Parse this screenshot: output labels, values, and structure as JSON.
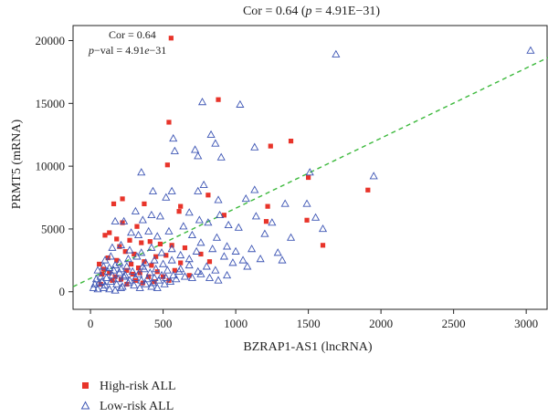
{
  "chart_data": {
    "type": "scatter",
    "title_parts": {
      "prefix": "Cor = 0.64 (",
      "p_symbol": "p",
      "suffix": " = 4.91E−31)"
    },
    "xlabel": "BZRAP1-AS1 (lncRNA)",
    "ylabel": "PRMT5 (mRNA)",
    "xlim": [
      -120,
      3150
    ],
    "ylim": [
      -1400,
      21200
    ],
    "x_ticks": [
      0,
      500,
      1000,
      1500,
      2000,
      2500,
      3000
    ],
    "y_ticks": [
      0,
      5000,
      10000,
      15000,
      20000
    ],
    "grid": false,
    "legend_position": "bottom-left",
    "annotations": {
      "cor": "Cor = 0.64",
      "pval_symbol": "p",
      "pval_mid": "−val = 4.91",
      "pval_e": "e",
      "pval_exp": "−31"
    },
    "regression": {
      "style": "dashed",
      "color": "#3cb93c",
      "x0": -120,
      "y0": 400,
      "x1": 3150,
      "y1": 18650
    },
    "series": [
      {
        "name": "High-risk ALL",
        "marker": "square",
        "color": "#e8342a",
        "points": [
          [
            555,
            20200
          ],
          [
            880,
            15300
          ],
          [
            540,
            13500
          ],
          [
            1240,
            11600
          ],
          [
            1380,
            12000
          ],
          [
            530,
            10100
          ],
          [
            1500,
            9100
          ],
          [
            1910,
            8100
          ],
          [
            220,
            7400
          ],
          [
            160,
            7000
          ],
          [
            370,
            7000
          ],
          [
            620,
            6800
          ],
          [
            610,
            6400
          ],
          [
            810,
            7700
          ],
          [
            1220,
            6800
          ],
          [
            920,
            6100
          ],
          [
            1210,
            5600
          ],
          [
            1490,
            5700
          ],
          [
            1600,
            3700
          ],
          [
            220,
            5500
          ],
          [
            320,
            5200
          ],
          [
            130,
            4700
          ],
          [
            100,
            4500
          ],
          [
            180,
            4200
          ],
          [
            270,
            4100
          ],
          [
            350,
            3900
          ],
          [
            410,
            4000
          ],
          [
            480,
            3800
          ],
          [
            560,
            3700
          ],
          [
            650,
            3500
          ],
          [
            760,
            3000
          ],
          [
            820,
            2400
          ],
          [
            200,
            3600
          ],
          [
            240,
            3200
          ],
          [
            300,
            3000
          ],
          [
            120,
            2700
          ],
          [
            180,
            2500
          ],
          [
            60,
            2200
          ],
          [
            90,
            1800
          ],
          [
            130,
            1500
          ],
          [
            170,
            1200
          ],
          [
            210,
            1000
          ],
          [
            250,
            1700
          ],
          [
            290,
            1400
          ],
          [
            330,
            1900
          ],
          [
            370,
            2400
          ],
          [
            420,
            2100
          ],
          [
            460,
            1600
          ],
          [
            500,
            1200
          ],
          [
            540,
            900
          ],
          [
            580,
            1700
          ],
          [
            620,
            2300
          ],
          [
            680,
            1300
          ],
          [
            250,
            600
          ],
          [
            310,
            900
          ],
          [
            360,
            700
          ],
          [
            450,
            2800
          ],
          [
            520,
            2900
          ],
          [
            400,
            1200
          ],
          [
            150,
            900
          ],
          [
            80,
            1400
          ],
          [
            280,
            2200
          ],
          [
            340,
            1500
          ],
          [
            440,
            800
          ],
          [
            70,
            600
          ]
        ]
      },
      {
        "name": "Low-risk ALL",
        "marker": "triangle",
        "color": "#3d55b4",
        "points": [
          [
            3030,
            19200
          ],
          [
            1690,
            18900
          ],
          [
            770,
            15100
          ],
          [
            1030,
            14900
          ],
          [
            830,
            12500
          ],
          [
            570,
            12200
          ],
          [
            860,
            11800
          ],
          [
            720,
            11300
          ],
          [
            1130,
            11500
          ],
          [
            580,
            11200
          ],
          [
            740,
            10800
          ],
          [
            900,
            10700
          ],
          [
            1510,
            9500
          ],
          [
            1950,
            9200
          ],
          [
            350,
            9500
          ],
          [
            780,
            8500
          ],
          [
            1130,
            8100
          ],
          [
            1070,
            7400
          ],
          [
            560,
            8000
          ],
          [
            740,
            8000
          ],
          [
            430,
            8000
          ],
          [
            1340,
            7000
          ],
          [
            520,
            7500
          ],
          [
            880,
            7300
          ],
          [
            1490,
            7000
          ],
          [
            1140,
            6000
          ],
          [
            1250,
            5500
          ],
          [
            1550,
            5900
          ],
          [
            170,
            5600
          ],
          [
            230,
            5600
          ],
          [
            310,
            6400
          ],
          [
            360,
            5700
          ],
          [
            420,
            6100
          ],
          [
            480,
            6000
          ],
          [
            680,
            6300
          ],
          [
            750,
            5700
          ],
          [
            810,
            5500
          ],
          [
            890,
            6100
          ],
          [
            950,
            5300
          ],
          [
            1020,
            5100
          ],
          [
            1200,
            4600
          ],
          [
            1380,
            4300
          ],
          [
            280,
            4700
          ],
          [
            330,
            4500
          ],
          [
            400,
            4800
          ],
          [
            460,
            4400
          ],
          [
            540,
            4800
          ],
          [
            640,
            5200
          ],
          [
            700,
            4500
          ],
          [
            760,
            3900
          ],
          [
            870,
            4300
          ],
          [
            940,
            3600
          ],
          [
            1000,
            3200
          ],
          [
            1110,
            3400
          ],
          [
            1170,
            2600
          ],
          [
            1290,
            3100
          ],
          [
            1320,
            2500
          ],
          [
            1050,
            2500
          ],
          [
            980,
            2300
          ],
          [
            920,
            2800
          ],
          [
            840,
            3400
          ],
          [
            150,
            3500
          ],
          [
            210,
            3700
          ],
          [
            270,
            3300
          ],
          [
            350,
            3100
          ],
          [
            420,
            3500
          ],
          [
            490,
            3100
          ],
          [
            560,
            3400
          ],
          [
            620,
            2900
          ],
          [
            680,
            2600
          ],
          [
            730,
            3200
          ],
          [
            800,
            2000
          ],
          [
            860,
            1700
          ],
          [
            100,
            2500
          ],
          [
            140,
            2800
          ],
          [
            200,
            2300
          ],
          [
            260,
            2600
          ],
          [
            320,
            2800
          ],
          [
            380,
            2300
          ],
          [
            440,
            2500
          ],
          [
            500,
            2200
          ],
          [
            560,
            2500
          ],
          [
            620,
            1800
          ],
          [
            680,
            2100
          ],
          [
            740,
            1600
          ],
          [
            50,
            1700
          ],
          [
            90,
            2000
          ],
          [
            130,
            1900
          ],
          [
            170,
            2100
          ],
          [
            210,
            1800
          ],
          [
            250,
            2000
          ],
          [
            290,
            1600
          ],
          [
            330,
            1400
          ],
          [
            370,
            1800
          ],
          [
            410,
            1500
          ],
          [
            450,
            1800
          ],
          [
            490,
            1300
          ],
          [
            530,
            1700
          ],
          [
            570,
            1300
          ],
          [
            610,
            1600
          ],
          [
            650,
            1200
          ],
          [
            700,
            1100
          ],
          [
            760,
            1400
          ],
          [
            820,
            1100
          ],
          [
            880,
            900
          ],
          [
            940,
            1300
          ],
          [
            40,
            1000
          ],
          [
            70,
            1200
          ],
          [
            110,
            1100
          ],
          [
            150,
            1300
          ],
          [
            190,
            1000
          ],
          [
            230,
            1200
          ],
          [
            270,
            900
          ],
          [
            310,
            1100
          ],
          [
            350,
            900
          ],
          [
            390,
            1000
          ],
          [
            430,
            700
          ],
          [
            470,
            900
          ],
          [
            510,
            600
          ],
          [
            550,
            800
          ],
          [
            590,
            1000
          ],
          [
            30,
            600
          ],
          [
            60,
            700
          ],
          [
            100,
            500
          ],
          [
            140,
            800
          ],
          [
            180,
            600
          ],
          [
            220,
            400
          ],
          [
            260,
            700
          ],
          [
            300,
            500
          ],
          [
            340,
            300
          ],
          [
            380,
            600
          ],
          [
            420,
            400
          ],
          [
            460,
            300
          ],
          [
            20,
            300
          ],
          [
            50,
            200
          ],
          [
            90,
            300
          ],
          [
            130,
            200
          ],
          [
            170,
            100
          ],
          [
            210,
            300
          ],
          [
            80,
            800
          ],
          [
            120,
            1600
          ],
          [
            160,
            1700
          ],
          [
            200,
            1500
          ],
          [
            240,
            1300
          ],
          [
            360,
            2000
          ],
          [
            440,
            1100
          ],
          [
            520,
            1100
          ],
          [
            1080,
            2000
          ],
          [
            1600,
            5000
          ]
        ]
      }
    ]
  }
}
